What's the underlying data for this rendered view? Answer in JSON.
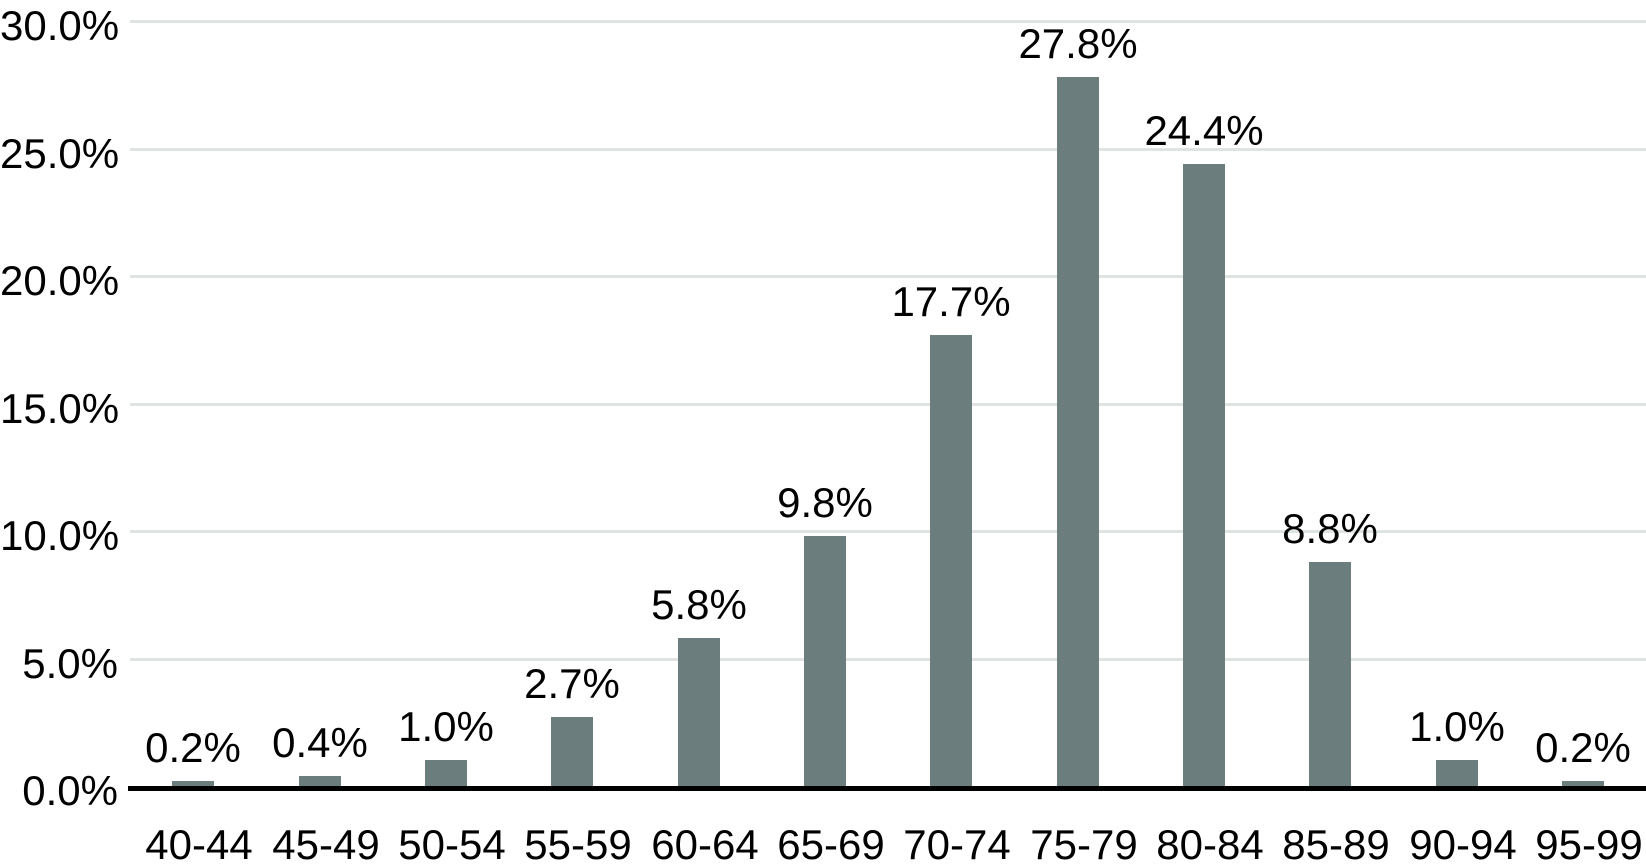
{
  "chart_data": {
    "type": "bar",
    "title": "",
    "xlabel": "",
    "ylabel": "",
    "categories": [
      "40-44",
      "45-49",
      "50-54",
      "55-59",
      "60-64",
      "65-69",
      "70-74",
      "75-79",
      "80-84",
      "85-89",
      "90-94",
      "95-99"
    ],
    "values": [
      0.2,
      0.4,
      1.0,
      2.7,
      5.8,
      9.8,
      17.7,
      27.8,
      24.4,
      8.8,
      1.0,
      0.2
    ],
    "value_labels": [
      "0.2%",
      "0.4%",
      "1.0%",
      "2.7%",
      "5.8%",
      "9.8%",
      "17.7%",
      "27.8%",
      "24.4%",
      "8.8%",
      "1.0%",
      "0.2%"
    ],
    "y_tick_labels": [
      "0.0%",
      "5.0%",
      "10.0%",
      "15.0%",
      "20.0%",
      "25.0%",
      "30.0%"
    ],
    "y_tick_values": [
      0,
      5,
      10,
      15,
      20,
      25,
      30
    ],
    "ylim": [
      0,
      30
    ],
    "grid": "horizontal-only",
    "legend": "none",
    "colors": {
      "bar": "#6b7d7c",
      "gridline": "#dfe4e2",
      "axis_line": "#000000",
      "text": "#000000",
      "background": "#ffffff"
    }
  }
}
